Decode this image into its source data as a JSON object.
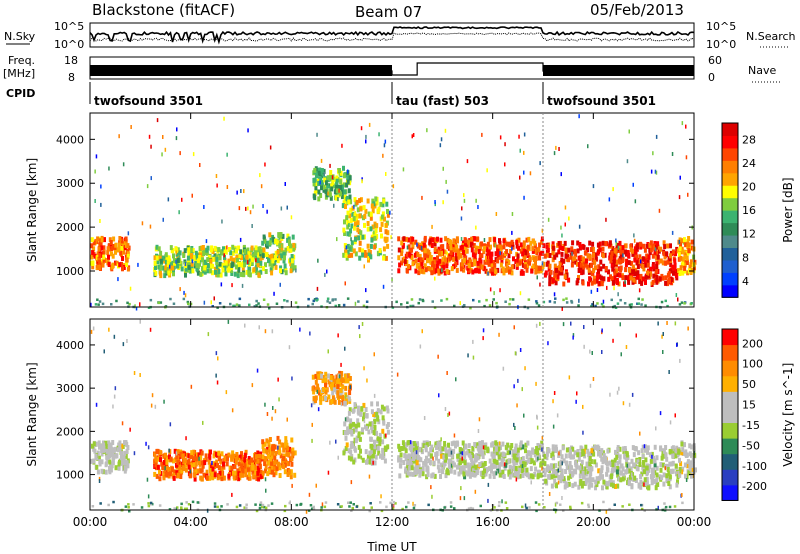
{
  "header": {
    "station": "Blackstone (fitACF)",
    "beam": "Beam 07",
    "date": "05/Feb/2013"
  },
  "top_panels": {
    "nsky_label": "N.Sky",
    "nsearch_label": "N.Search",
    "freq_label_1": "Freq.",
    "freq_label_2": "[MHz]",
    "nave_label": "Nave",
    "cpid_label": "CPID",
    "nsky_ticks": [
      "10^5",
      "10^0"
    ],
    "nsearch_ticks": [
      "10^5",
      "10^0"
    ],
    "freq_ticks": [
      "18",
      "8"
    ],
    "nave_ticks": [
      "60",
      "0"
    ],
    "cpid_segments": [
      {
        "start": 0,
        "end": 12,
        "label": "twofsound 3501"
      },
      {
        "start": 12,
        "end": 18,
        "label": "tau (fast) 503"
      },
      {
        "start": 18,
        "end": 24,
        "label": "twofsound 3501"
      }
    ],
    "nave_high_interval": [
      13.0,
      18.0
    ],
    "nave_dip_interval": [
      12.0,
      13.0
    ]
  },
  "chart_data": [
    {
      "type": "heatmap",
      "name": "power",
      "x_domain": [
        0,
        24
      ],
      "xlabel": "Time UT",
      "x_ticks": [
        "00:00",
        "04:00",
        "08:00",
        "12:00",
        "16:00",
        "20:00",
        "00:00"
      ],
      "ylabel": "Slant Range [km]",
      "ylim": [
        180,
        4600
      ],
      "y_ticks": [
        1000,
        2000,
        3000,
        4000
      ],
      "colorbar": {
        "label": "Power [dB]",
        "ticks": [
          "28",
          "24",
          "20",
          "16",
          "12",
          "8",
          "4"
        ],
        "colors": [
          "#0000ff",
          "#0040ff",
          "#1f5fcf",
          "#20609a",
          "#4f8a8b",
          "#2e8b57",
          "#3cb371",
          "#7fcd3f",
          "#ffff00",
          "#ffa500",
          "#ff7f00",
          "#ff4500",
          "#ff0000",
          "#dd0000"
        ]
      },
      "echo_regions": [
        {
          "t": [
            0.0,
            1.5
          ],
          "r": [
            1100,
            1800
          ],
          "level": 0.75
        },
        {
          "t": [
            2.5,
            6.8
          ],
          "r": [
            950,
            1600
          ],
          "level": 0.55
        },
        {
          "t": [
            6.8,
            8.1
          ],
          "r": [
            1000,
            1900
          ],
          "level": 0.55
        },
        {
          "t": [
            8.8,
            10.3
          ],
          "r": [
            2700,
            3400
          ],
          "level": 0.5
        },
        {
          "t": [
            10.0,
            11.8
          ],
          "r": [
            1300,
            2700
          ],
          "level": 0.6
        },
        {
          "t": [
            12.2,
            18.0
          ],
          "r": [
            1000,
            1800
          ],
          "level": 0.8
        },
        {
          "t": [
            18.0,
            23.3
          ],
          "r": [
            750,
            1700
          ],
          "level": 0.88
        },
        {
          "t": [
            23.3,
            24.0
          ],
          "r": [
            1000,
            1800
          ],
          "level": 0.7
        }
      ]
    },
    {
      "type": "heatmap",
      "name": "velocity",
      "x_domain": [
        0,
        24
      ],
      "xlabel": "Time UT",
      "x_ticks": [
        "00:00",
        "04:00",
        "08:00",
        "12:00",
        "16:00",
        "20:00",
        "00:00"
      ],
      "ylabel": "Slant Range [km]",
      "ylim": [
        180,
        4600
      ],
      "y_ticks": [
        1000,
        2000,
        3000,
        4000
      ],
      "colorbar": {
        "label": "Velocity [m s^-1]",
        "ticks": [
          "200",
          "100",
          "50",
          "15",
          "-15",
          "-50",
          "-100",
          "-200"
        ],
        "colors": [
          "#1010ff",
          "#2a3fc0",
          "#215e76",
          "#2e8b57",
          "#9acd32",
          "#bebebe",
          "#bebebe",
          "#ffb000",
          "#ff8c00",
          "#ff5a00",
          "#ff0000"
        ]
      },
      "echo_regions": [
        {
          "t": [
            0.0,
            1.5
          ],
          "r": [
            1100,
            1800
          ],
          "level": 0.5
        },
        {
          "t": [
            2.5,
            6.8
          ],
          "r": [
            950,
            1600
          ],
          "level": 0.82
        },
        {
          "t": [
            6.8,
            8.1
          ],
          "r": [
            1000,
            1900
          ],
          "level": 0.78
        },
        {
          "t": [
            8.8,
            10.3
          ],
          "r": [
            2700,
            3400
          ],
          "level": 0.72
        },
        {
          "t": [
            10.0,
            11.8
          ],
          "r": [
            1300,
            2700
          ],
          "level": 0.5
        },
        {
          "t": [
            12.2,
            18.0
          ],
          "r": [
            1000,
            1800
          ],
          "level": 0.5
        },
        {
          "t": [
            18.0,
            23.3
          ],
          "r": [
            750,
            1700
          ],
          "level": 0.5
        },
        {
          "t": [
            23.3,
            24.0
          ],
          "r": [
            1000,
            1800
          ],
          "level": 0.55
        }
      ]
    }
  ]
}
